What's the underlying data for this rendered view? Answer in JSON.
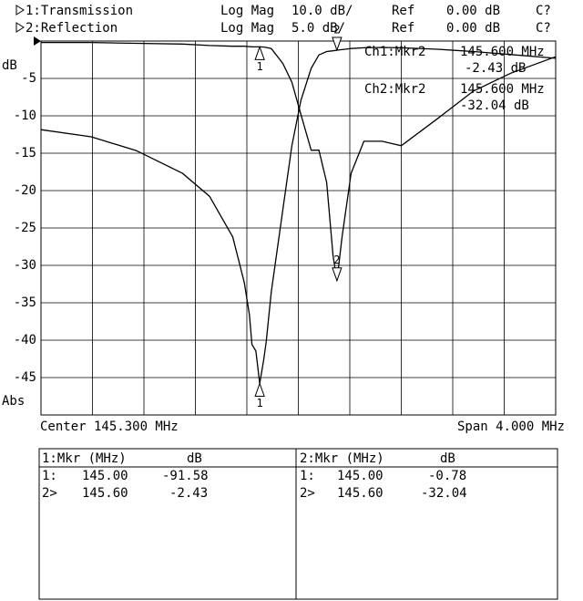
{
  "header": [
    {
      "format": "Log Mag",
      "scale": "10.0 dB/",
      "ref_label": "Ref",
      "ref": "0.00 dB",
      "cal": "C?"
    },
    {
      "format": "Log Mag",
      "scale": "5.0 dB/",
      "ref_label": "Ref",
      "ref": "0.00 dB",
      "cal": "C?"
    }
  ],
  "chart_data": {
    "type": "line",
    "ylabel": "dB",
    "ybottom_label": "Abs",
    "x": [
      143.3,
      143.69,
      144.04,
      144.4,
      144.61,
      144.79,
      144.88,
      144.92,
      144.94,
      144.97,
      145.0,
      145.03,
      145.05,
      145.09,
      145.18,
      145.25,
      145.32,
      145.4,
      145.46,
      145.52,
      145.57,
      145.6,
      145.64,
      145.71,
      145.81,
      145.95,
      146.1,
      146.38,
      146.66,
      146.95,
      147.3
    ],
    "xlim": [
      143.3,
      147.3
    ],
    "ylim": [
      -50,
      0
    ],
    "yticks": [
      -5,
      -10,
      -15,
      -20,
      -25,
      -30,
      -35,
      -40,
      -45
    ],
    "y2lim": [
      -100,
      0
    ],
    "grid": true,
    "series": [
      {
        "name": "1:Transmission",
        "color": "#000000",
        "axis": "y2",
        "values": [
          -23.7,
          -25.6,
          -29.3,
          -35.4,
          -41.5,
          -52.4,
          -64.6,
          -73.2,
          -81.2,
          -82.9,
          -91.58,
          -85.4,
          -80.5,
          -67.1,
          -45.1,
          -28.0,
          -15.9,
          -7.3,
          -3.7,
          -2.8,
          -2.6,
          -2.43,
          -2.3,
          -2.0,
          -1.8,
          -1.7,
          -1.8,
          -2.2,
          -2.8,
          -3.6,
          -4.6
        ]
      },
      {
        "name": "2:Reflection",
        "color": "#000000",
        "values": [
          -0.2,
          -0.2,
          -0.3,
          -0.4,
          -0.6,
          -0.7,
          -0.7,
          -0.75,
          -0.77,
          -0.78,
          -0.78,
          -0.8,
          -0.85,
          -1.0,
          -3.0,
          -5.5,
          -9.8,
          -14.6,
          -14.6,
          -18.9,
          -28.7,
          -32.04,
          -26.2,
          -17.7,
          -13.4,
          -13.4,
          -14.0,
          -10.4,
          -6.7,
          -4.3,
          -2.1
        ]
      }
    ],
    "markers": [
      {
        "label": "1",
        "x": 145.0
      },
      {
        "label": "2",
        "x": 145.6
      }
    ],
    "annotations": [
      {
        "label": "Ch1:Mkr2",
        "freq": "145.600 MHz",
        "value": "-2.43 dB"
      },
      {
        "label": "Ch2:Mkr2",
        "freq": "145.600 MHz",
        "value": "-32.04 dB"
      }
    ]
  },
  "footer": {
    "center": "Center 145.300 MHz",
    "span": "Span 4.000 MHz"
  },
  "marker_table": [
    {
      "header": "1:Mkr (MHz)",
      "unit": "dB",
      "rows": [
        [
          "1:",
          "145.00",
          "-91.58"
        ],
        [
          "2>",
          "145.60",
          "-2.43"
        ]
      ]
    },
    {
      "header": "2:Mkr (MHz)",
      "unit": "dB",
      "rows": [
        [
          "1:",
          "145.00",
          "-0.78"
        ],
        [
          "2>",
          "145.60",
          "-32.04"
        ]
      ]
    }
  ]
}
